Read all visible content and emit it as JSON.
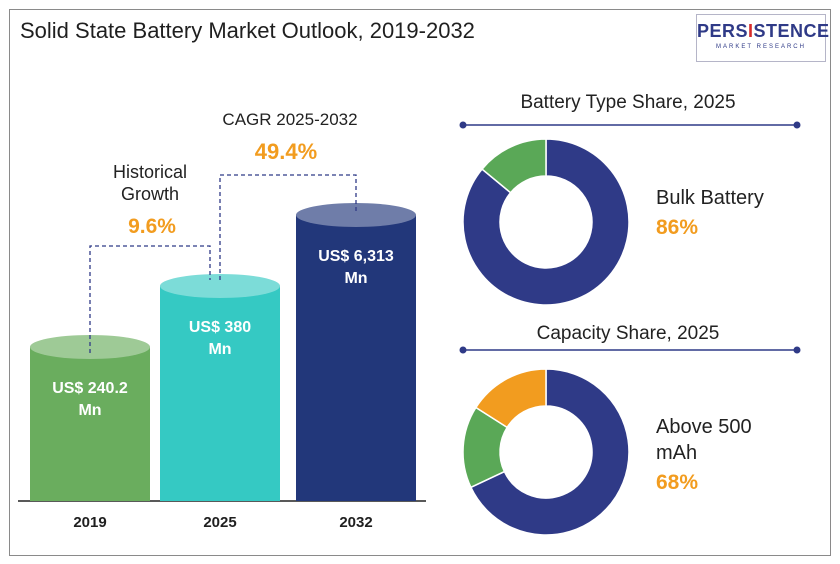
{
  "title": "Solid State Battery Market Outlook, 2019-2032",
  "logo": {
    "pre": "PERS",
    "accent": "I",
    "post": "STENCE",
    "sub": "MARKET RESEARCH"
  },
  "colors": {
    "bar_2019": "#6aad5e",
    "bar_2025": "#35c9c3",
    "bar_2032": "#22377a",
    "donut_main": "#2f3a87",
    "donut_green": "#5aa857",
    "donut_orange": "#f29c1f",
    "accent_text": "#f29c1f"
  },
  "chart_data": [
    {
      "type": "bar",
      "categories": [
        "2019",
        "2025",
        "2032"
      ],
      "values": [
        240.2,
        380,
        6313
      ],
      "value_labels": [
        [
          "US$ 240.2",
          "Mn"
        ],
        [
          "US$ 380",
          "Mn"
        ],
        [
          "US$ 6,313",
          "Mn"
        ]
      ],
      "annotations": {
        "historical": {
          "label_lines": [
            "Historical",
            "Growth"
          ],
          "value": "9.6%"
        },
        "cagr": {
          "label": "CAGR 2025-2032",
          "value": "49.4%"
        }
      }
    },
    {
      "type": "pie",
      "title": "Battery Type Share, 2025",
      "slices": [
        {
          "label": "Bulk Battery",
          "value": 86
        },
        {
          "label": "",
          "value": 14
        }
      ],
      "label_lines": [
        "Bulk Battery"
      ],
      "value_text": "86%"
    },
    {
      "type": "pie",
      "title": "Capacity Share, 2025",
      "slices": [
        {
          "label": "Above 500 mAh",
          "value": 68
        },
        {
          "label": "",
          "value": 16
        },
        {
          "label": "",
          "value": 16
        }
      ],
      "label_lines": [
        "Above 500",
        "mAh"
      ],
      "value_text": "68%"
    }
  ]
}
